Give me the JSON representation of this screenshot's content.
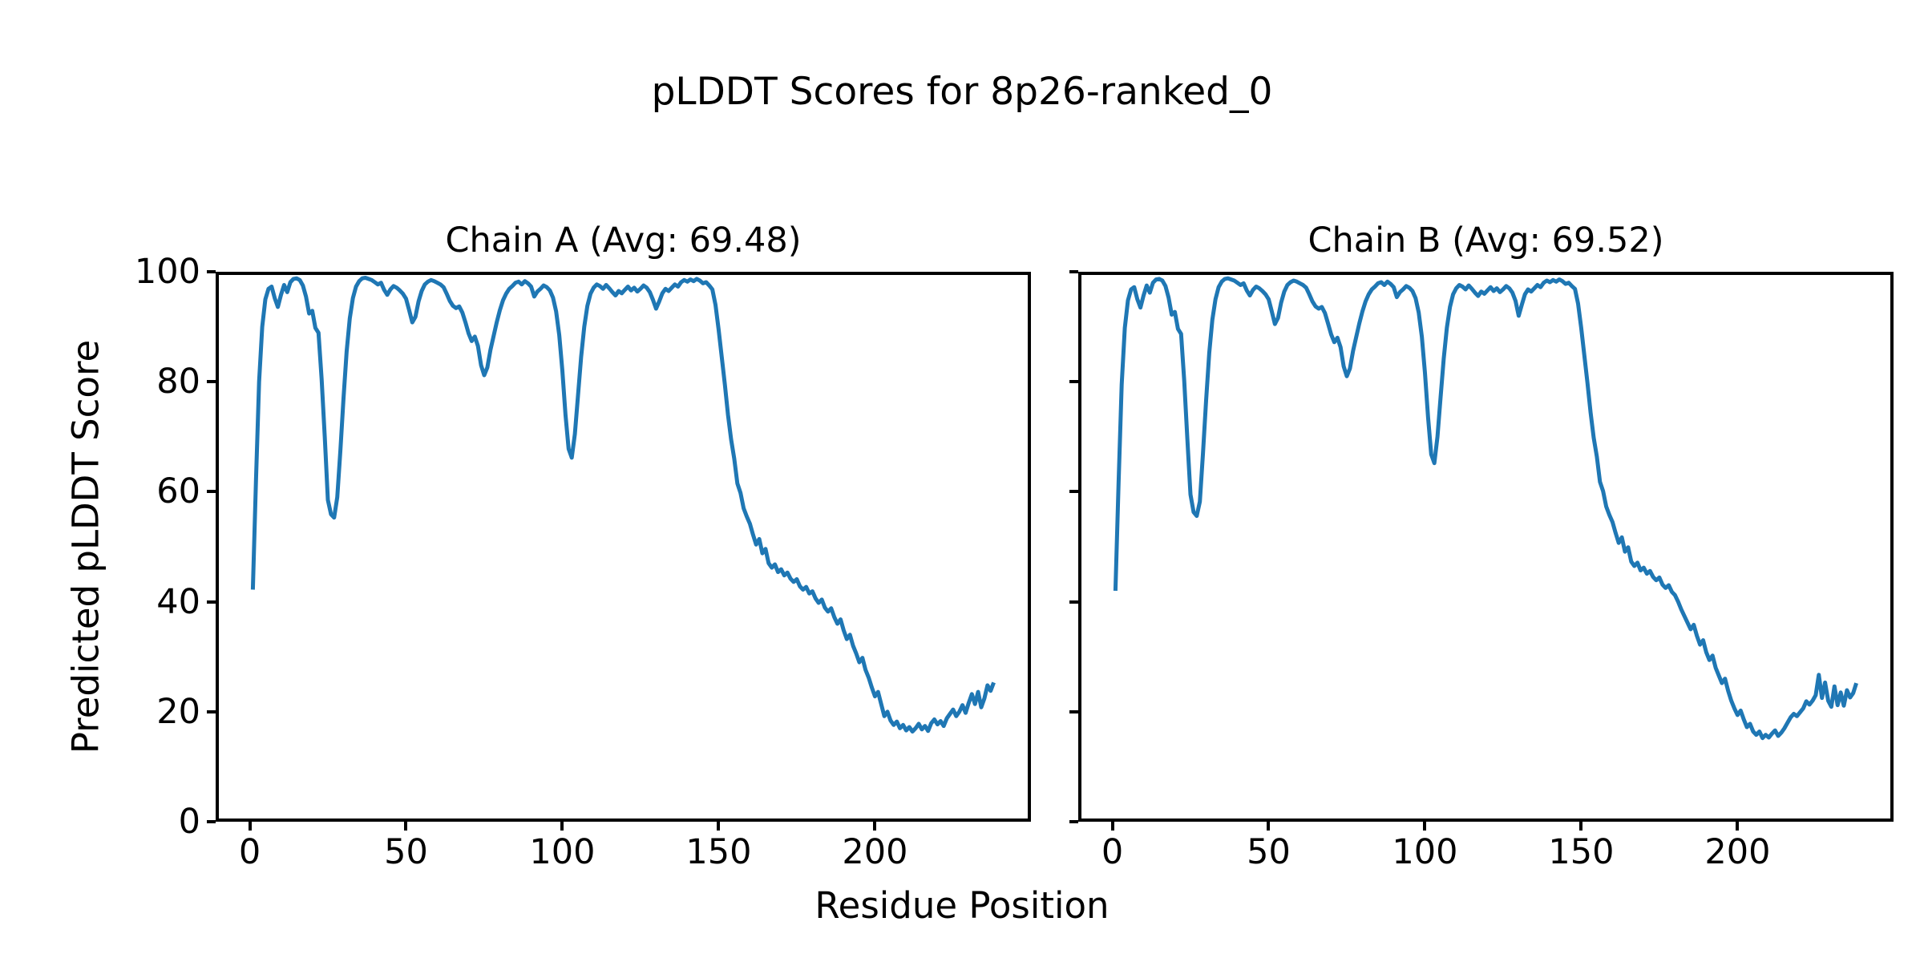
{
  "figure": {
    "title": "pLDDT Scores for 8p26-ranked_0",
    "xlabel": "Residue Position",
    "ylabel": "Predicted pLDDT Score",
    "background_color": "#ffffff",
    "text_color": "#000000",
    "spine_color": "#000000",
    "line_color": "#1f77b4"
  },
  "chart_data": [
    {
      "type": "line",
      "title": "Chain A (Avg: 69.48)",
      "chain": "A",
      "average": 69.48,
      "line_color": "#1f77b4",
      "xlim": [
        -10.9,
        249.9
      ],
      "ylim": [
        0,
        100
      ],
      "x_ticks": [
        0,
        50,
        100,
        150,
        200
      ],
      "y_ticks": [
        0,
        20,
        40,
        60,
        80,
        100
      ],
      "y_tick_labels_visible": true,
      "grid": false,
      "legend": "none",
      "x_start": 1,
      "values": [
        42.2,
        62.0,
        80.0,
        90.0,
        95.0,
        96.9,
        97.3,
        95.2,
        93.6,
        95.8,
        97.6,
        96.3,
        98.1,
        98.7,
        98.8,
        98.5,
        97.5,
        95.5,
        92.4,
        92.9,
        89.8,
        88.9,
        80.5,
        70.0,
        58.5,
        55.9,
        55.3,
        59.0,
        67.5,
        77.0,
        85.5,
        91.5,
        95.2,
        97.3,
        98.3,
        98.8,
        98.9,
        98.7,
        98.5,
        98.1,
        97.7,
        98.0,
        96.7,
        95.8,
        96.8,
        97.4,
        97.1,
        96.6,
        96.0,
        95.1,
        93.0,
        90.8,
        91.8,
        94.6,
        96.5,
        97.7,
        98.2,
        98.5,
        98.3,
        98.0,
        97.7,
        97.2,
        96.0,
        94.7,
        93.8,
        93.4,
        93.7,
        92.6,
        90.8,
        88.8,
        87.4,
        88.2,
        86.5,
        83.0,
        81.2,
        82.6,
        85.8,
        88.3,
        90.8,
        93.0,
        94.8,
        96.0,
        96.9,
        97.4,
        98.0,
        98.2,
        97.7,
        98.3,
        97.9,
        97.3,
        95.5,
        96.4,
        96.9,
        97.5,
        97.2,
        96.6,
        95.3,
        92.8,
        88.5,
        82.0,
        74.0,
        67.8,
        66.2,
        70.5,
        77.5,
        84.5,
        90.0,
        93.8,
        96.0,
        97.1,
        97.7,
        97.4,
        96.9,
        97.6,
        97.0,
        96.3,
        95.7,
        96.5,
        96.1,
        96.7,
        97.3,
        96.6,
        97.1,
        96.4,
        96.9,
        97.5,
        97.1,
        96.3,
        94.9,
        93.3,
        94.6,
        96.1,
        96.9,
        96.5,
        97.1,
        97.7,
        97.3,
        98.1,
        98.5,
        98.2,
        98.6,
        98.3,
        98.7,
        98.4,
        97.9,
        98.1,
        97.5,
        96.8,
        94.0,
        89.5,
        84.5,
        79.5,
        74.0,
        69.5,
        66.0,
        61.5,
        59.8,
        57.0,
        55.5,
        54.2,
        52.2,
        50.4,
        51.4,
        48.8,
        49.6,
        47.0,
        46.2,
        46.8,
        45.4,
        45.9,
        44.8,
        45.3,
        44.2,
        43.6,
        44.1,
        42.8,
        42.2,
        42.7,
        41.5,
        41.9,
        40.6,
        39.8,
        40.4,
        38.9,
        38.2,
        38.8,
        37.2,
        36.0,
        36.8,
        34.8,
        33.2,
        34.0,
        32.0,
        30.6,
        29.0,
        29.8,
        27.6,
        26.2,
        24.4,
        22.8,
        23.6,
        21.4,
        19.2,
        20.0,
        18.4,
        17.6,
        18.2,
        17.0,
        17.6,
        16.6,
        17.2,
        16.4,
        17.0,
        17.8,
        16.8,
        17.4,
        16.5,
        17.9,
        18.6,
        17.7,
        18.3,
        17.4,
        18.8,
        19.6,
        20.4,
        19.2,
        20.0,
        21.2,
        19.8,
        21.6,
        23.2,
        21.4,
        23.6,
        20.8,
        22.4,
        24.8,
        23.8,
        25.3
      ]
    },
    {
      "type": "line",
      "title": "Chain B (Avg: 69.52)",
      "chain": "B",
      "average": 69.52,
      "line_color": "#1f77b4",
      "xlim": [
        -10.9,
        249.9
      ],
      "ylim": [
        0,
        100
      ],
      "x_ticks": [
        0,
        50,
        100,
        150,
        200
      ],
      "y_ticks": [
        0,
        20,
        40,
        60,
        80,
        100
      ],
      "y_tick_labels_visible": false,
      "grid": false,
      "legend": "none",
      "x_start": 1,
      "values": [
        42.0,
        61.5,
        79.5,
        89.8,
        94.8,
        96.8,
        97.2,
        95.0,
        93.5,
        95.7,
        97.5,
        96.2,
        98.0,
        98.6,
        98.7,
        98.4,
        97.4,
        95.3,
        92.2,
        92.7,
        89.6,
        88.7,
        80.2,
        69.6,
        59.5,
        56.3,
        55.6,
        58.2,
        67.0,
        76.6,
        85.2,
        91.3,
        95.0,
        97.2,
        98.2,
        98.7,
        98.8,
        98.6,
        98.4,
        98.0,
        97.6,
        97.9,
        96.6,
        95.7,
        96.7,
        97.3,
        97.0,
        96.5,
        95.9,
        95.0,
        92.8,
        90.5,
        91.6,
        94.4,
        96.4,
        97.6,
        98.1,
        98.4,
        98.2,
        97.9,
        97.6,
        97.1,
        95.9,
        94.6,
        93.7,
        93.3,
        93.6,
        92.5,
        90.6,
        88.6,
        87.2,
        88.0,
        86.3,
        82.8,
        81.0,
        82.4,
        85.6,
        88.1,
        90.6,
        92.8,
        94.6,
        95.9,
        96.8,
        97.3,
        97.9,
        98.1,
        97.6,
        98.2,
        97.8,
        97.2,
        95.4,
        96.3,
        96.8,
        97.4,
        97.1,
        96.5,
        95.2,
        92.6,
        88.2,
        81.6,
        73.5,
        66.8,
        65.2,
        70.0,
        77.2,
        84.2,
        89.8,
        93.6,
        95.9,
        97.0,
        97.6,
        97.3,
        96.8,
        97.5,
        96.9,
        96.2,
        95.6,
        96.4,
        96.0,
        96.6,
        97.2,
        96.5,
        97.0,
        96.3,
        96.8,
        97.4,
        97.0,
        96.2,
        94.7,
        92.0,
        94.0,
        95.9,
        96.8,
        96.4,
        97.0,
        97.6,
        97.2,
        98.0,
        98.4,
        98.1,
        98.5,
        98.2,
        98.6,
        98.3,
        97.8,
        98.0,
        97.4,
        96.9,
        94.2,
        89.8,
        84.8,
        79.8,
        74.4,
        69.8,
        66.4,
        61.8,
        60.1,
        57.3,
        55.8,
        54.5,
        52.5,
        50.7,
        51.7,
        49.1,
        49.9,
        47.3,
        46.5,
        47.1,
        45.7,
        46.2,
        45.1,
        45.6,
        44.5,
        43.9,
        44.4,
        43.1,
        42.5,
        43.0,
        41.8,
        41.2,
        40.0,
        38.6,
        37.4,
        36.2,
        35.0,
        35.8,
        33.8,
        32.2,
        33.0,
        30.8,
        29.4,
        30.2,
        28.0,
        26.6,
        25.2,
        26.0,
        23.8,
        22.0,
        20.6,
        19.4,
        20.2,
        18.6,
        17.2,
        17.8,
        16.4,
        15.8,
        16.4,
        15.2,
        15.8,
        15.3,
        16.0,
        16.6,
        15.6,
        16.2,
        17.0,
        18.0,
        19.0,
        19.6,
        19.2,
        19.9,
        20.6,
        21.9,
        21.3,
        22.0,
        23.0,
        26.7,
        22.5,
        25.3,
        22.0,
        20.9,
        24.6,
        21.2,
        23.5,
        21.1,
        23.9,
        22.6,
        23.4,
        25.2
      ]
    }
  ]
}
